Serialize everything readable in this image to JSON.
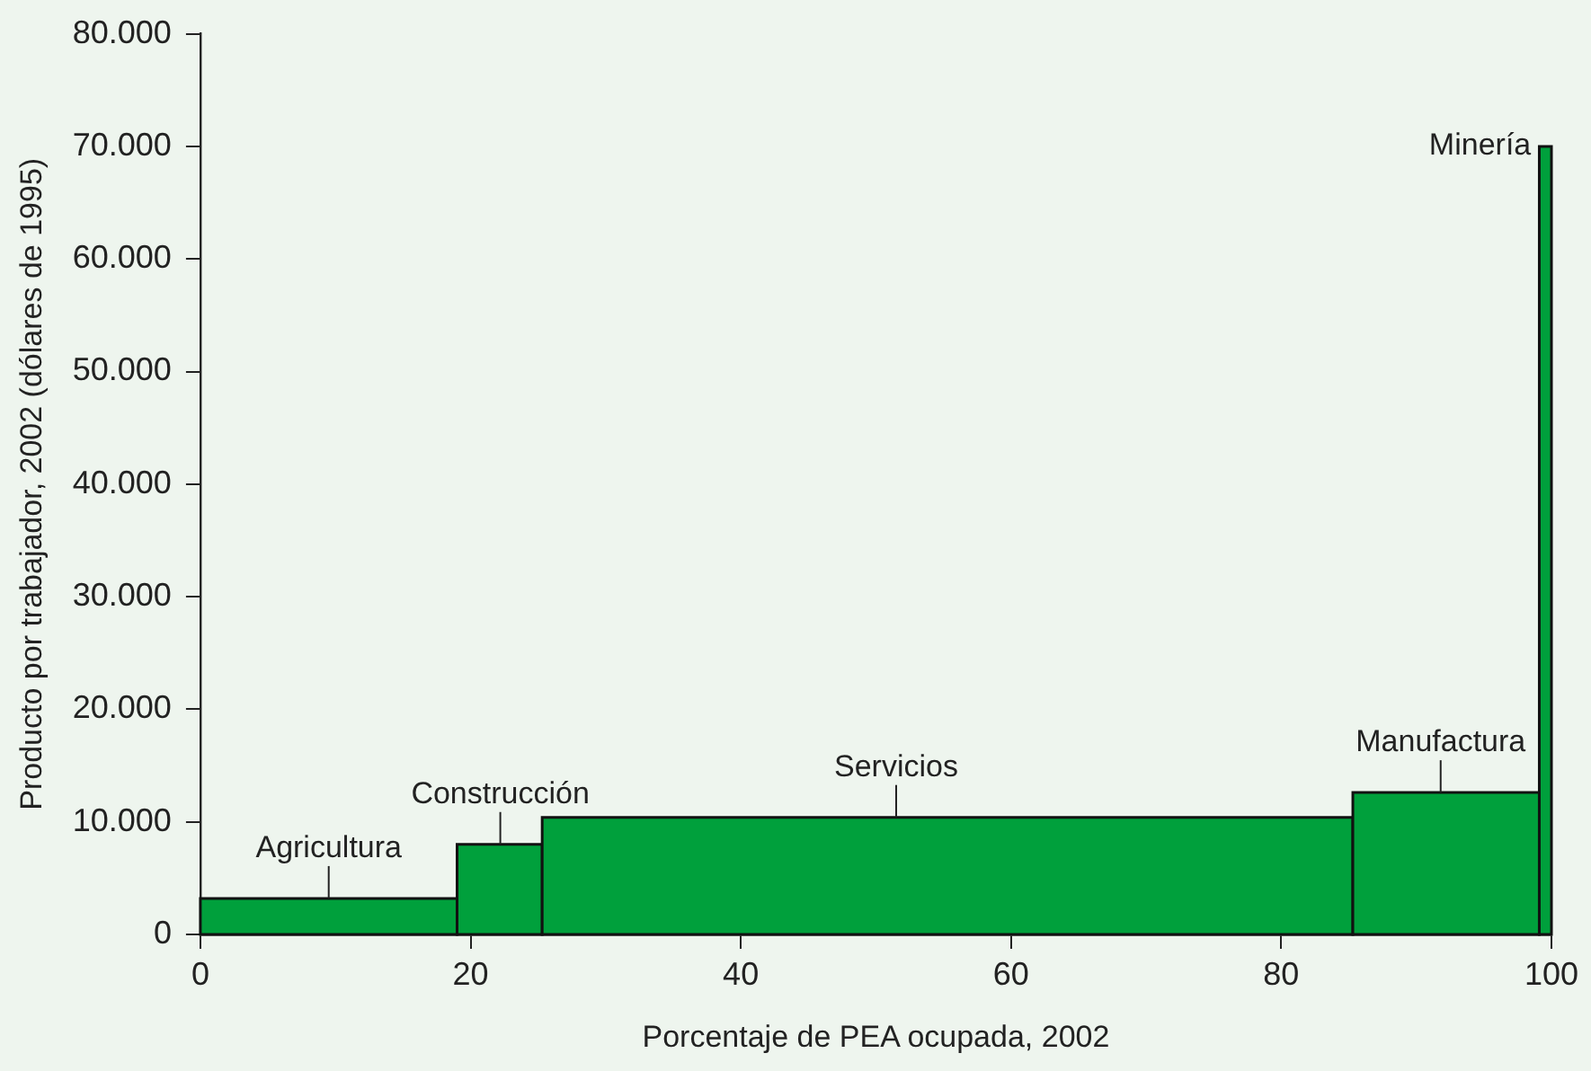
{
  "chart_data": {
    "type": "histogram",
    "xlabel": "Porcentaje de PEA ocupada, 2002",
    "ylabel": "Producto por trabajador, 2002 (dólares de 1995)",
    "bins": [
      0,
      19,
      25.3,
      85.3,
      99.1,
      100
    ],
    "values": [
      3200,
      8000,
      10400,
      12600,
      70000
    ],
    "color": "#00a03c",
    "xlim": [
      0,
      100
    ],
    "xticks": [
      0,
      20,
      40,
      60,
      80,
      100
    ],
    "ylim": [
      0,
      80000
    ],
    "yticks": [
      0,
      {
        "value": 10000,
        "label": "10.000"
      },
      {
        "value": 20000,
        "label": "20.000"
      },
      {
        "value": 30000,
        "label": "30.000"
      },
      {
        "value": 40000,
        "label": "40.000"
      },
      {
        "value": 50000,
        "label": "50.000"
      },
      {
        "value": 60000,
        "label": "60.000"
      },
      {
        "value": 70000,
        "label": "70.000"
      },
      {
        "value": 80000,
        "label": "80.000"
      }
    ],
    "grid": false,
    "legend": false,
    "annotations": [
      {
        "text": "Agricultura",
        "x": 9.5,
        "y": 3200
      },
      {
        "text": "Construcción",
        "x": 22.2,
        "y": 8000
      },
      {
        "text": "Servicios",
        "x": 51.5,
        "y": 10400
      },
      {
        "text": "Manufactura",
        "x": 91.8,
        "y": 12600
      },
      {
        "text": "Minería",
        "x": 99.55,
        "y": 70000
      }
    ]
  }
}
